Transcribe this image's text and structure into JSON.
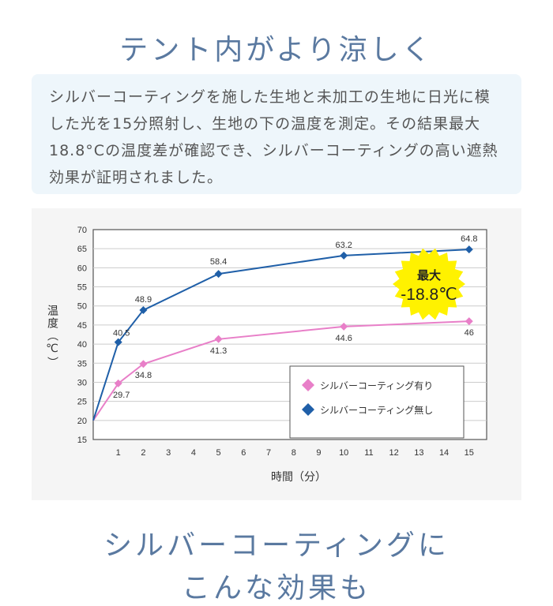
{
  "heading_top": "テント内がより涼しく",
  "description": "シルバーコーティングを施した生地と未加工の生地に日光に模した光を15分照射し、生地の下の温度を測定。その結果最大18.8°Cの温度差が確認でき、シルバーコーティングの高い遮熱効果が証明されました。",
  "heading_bottom_1": "シルバーコーティングに",
  "heading_bottom_2": "こんな効果も",
  "colors": {
    "heading": "#5a79a0",
    "coated": "#e87fc8",
    "uncoated": "#1f5fa8",
    "badge": "#fff200"
  },
  "chart_data": {
    "type": "line",
    "title": "",
    "xlabel": "時間（分）",
    "ylabel": "温度（℃）",
    "xlim": [
      0,
      15.7
    ],
    "ylim": [
      15,
      70
    ],
    "yticks": [
      15,
      20,
      25,
      30,
      35,
      40,
      45,
      50,
      55,
      60,
      65,
      70
    ],
    "xticks": [
      1,
      2,
      3,
      4,
      5,
      6,
      7,
      8,
      9,
      10,
      11,
      12,
      13,
      14,
      15
    ],
    "grid": true,
    "legend_position": "bottom-right",
    "series": [
      {
        "name": "シルバーコーティング有り",
        "color": "#e87fc8",
        "x": [
          0,
          1,
          2,
          5,
          10,
          15
        ],
        "y": [
          20,
          29.7,
          34.8,
          41.3,
          44.6,
          46
        ],
        "labels": [
          "",
          "29.7",
          "34.8",
          "41.3",
          "44.6",
          "46"
        ]
      },
      {
        "name": "シルバーコーティング無し",
        "color": "#1f5fa8",
        "x": [
          0,
          1,
          2,
          5,
          10,
          15
        ],
        "y": [
          20,
          40.5,
          48.9,
          58.4,
          63.2,
          64.8
        ],
        "labels": [
          "",
          "40.5",
          "48.9",
          "58.4",
          "63.2",
          "64.8"
        ]
      }
    ],
    "annotation": {
      "line1": "最大",
      "line2": "-18.8℃"
    }
  }
}
